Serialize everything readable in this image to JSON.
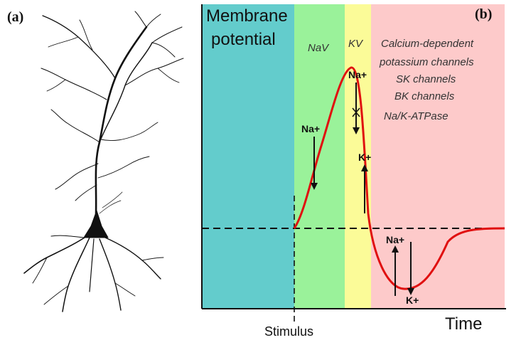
{
  "panel_a": {
    "label": "(a)"
  },
  "panel_b": {
    "label": "(b)",
    "y_axis_label": [
      "Membrane",
      "potential"
    ],
    "x_axis_label": "Time",
    "stimulus_label": "Stimulus",
    "phases": [
      {
        "channel": "NaV",
        "color": "#9af29a"
      },
      {
        "channel": "KV",
        "color": "#fbfb98"
      }
    ],
    "rest_phase_color": "#63cccc",
    "after_phase_color": "#fdcaca",
    "after_phase_lines": [
      "Calcium-dependent",
      "potassium channels",
      "SK channels",
      "BK channels",
      "Na/K-ATPase"
    ],
    "ions": {
      "na_depolarization": "Na+",
      "na_peak_blocked": "Na+",
      "k_repolarization": "K+",
      "na_hyperpolarization": "Na+",
      "k_hyperpolarization": "K+"
    },
    "curve_color": "#e01010"
  }
}
